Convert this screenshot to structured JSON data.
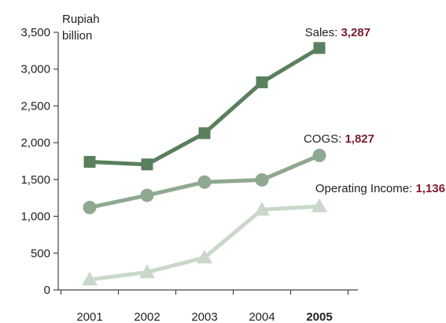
{
  "chart_data": {
    "type": "line",
    "ylabel_lines": [
      "Rupiah",
      "billion"
    ],
    "x": [
      "2001",
      "2002",
      "2003",
      "2004",
      "2005"
    ],
    "highlight_x": "2005",
    "ylim": [
      0,
      3500
    ],
    "yticks": [
      0,
      500,
      1000,
      1500,
      2000,
      2500,
      3000,
      3500
    ],
    "ytick_labels": [
      "0",
      "500",
      "1,000",
      "1,500",
      "2,000",
      "2,500",
      "3,000",
      "3,500"
    ],
    "grid": false,
    "series": [
      {
        "name": "Sales",
        "marker": "square",
        "color": "#5a7f5d",
        "values": [
          1740,
          1705,
          2130,
          2820,
          3287
        ],
        "last_label": "3,287"
      },
      {
        "name": "COGS",
        "marker": "circle",
        "color": "#8fa890",
        "values": [
          1120,
          1285,
          1465,
          1495,
          1827
        ],
        "last_label": "1,827"
      },
      {
        "name": "Operating Income",
        "marker": "triangle",
        "color": "#c9d8c9",
        "values": [
          140,
          240,
          440,
          1090,
          1136
        ],
        "last_label": "1,136"
      }
    ],
    "highlight_color": "#7a1a2e",
    "axis_color": "#444444"
  }
}
